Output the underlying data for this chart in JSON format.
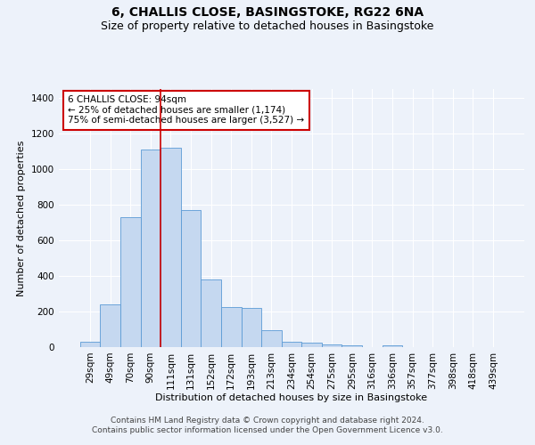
{
  "title": "6, CHALLIS CLOSE, BASINGSTOKE, RG22 6NA",
  "subtitle": "Size of property relative to detached houses in Basingstoke",
  "xlabel": "Distribution of detached houses by size in Basingstoke",
  "ylabel": "Number of detached properties",
  "footer_line1": "Contains HM Land Registry data © Crown copyright and database right 2024.",
  "footer_line2": "Contains public sector information licensed under the Open Government Licence v3.0.",
  "categories": [
    "29sqm",
    "49sqm",
    "70sqm",
    "90sqm",
    "111sqm",
    "131sqm",
    "152sqm",
    "172sqm",
    "193sqm",
    "213sqm",
    "234sqm",
    "254sqm",
    "275sqm",
    "295sqm",
    "316sqm",
    "336sqm",
    "357sqm",
    "377sqm",
    "398sqm",
    "418sqm",
    "439sqm"
  ],
  "values": [
    30,
    240,
    730,
    1110,
    1120,
    770,
    380,
    225,
    220,
    95,
    30,
    25,
    15,
    10,
    0,
    10,
    0,
    0,
    0,
    0,
    0
  ],
  "bar_color": "#c5d8f0",
  "bar_edge_color": "#5b9bd5",
  "bar_edge_width": 0.6,
  "red_line_x": 3.5,
  "red_line_color": "#cc0000",
  "annotation_text": "6 CHALLIS CLOSE: 94sqm\n← 25% of detached houses are smaller (1,174)\n75% of semi-detached houses are larger (3,527) →",
  "annotation_box_color": "#cc0000",
  "annotation_text_color": "#000000",
  "ylim": [
    0,
    1450
  ],
  "yticks": [
    0,
    200,
    400,
    600,
    800,
    1000,
    1200,
    1400
  ],
  "background_color": "#edf2fa",
  "grid_color": "#ffffff",
  "title_fontsize": 10,
  "subtitle_fontsize": 9,
  "axis_label_fontsize": 8,
  "tick_fontsize": 7.5,
  "annotation_fontsize": 7.5,
  "footer_fontsize": 6.5
}
